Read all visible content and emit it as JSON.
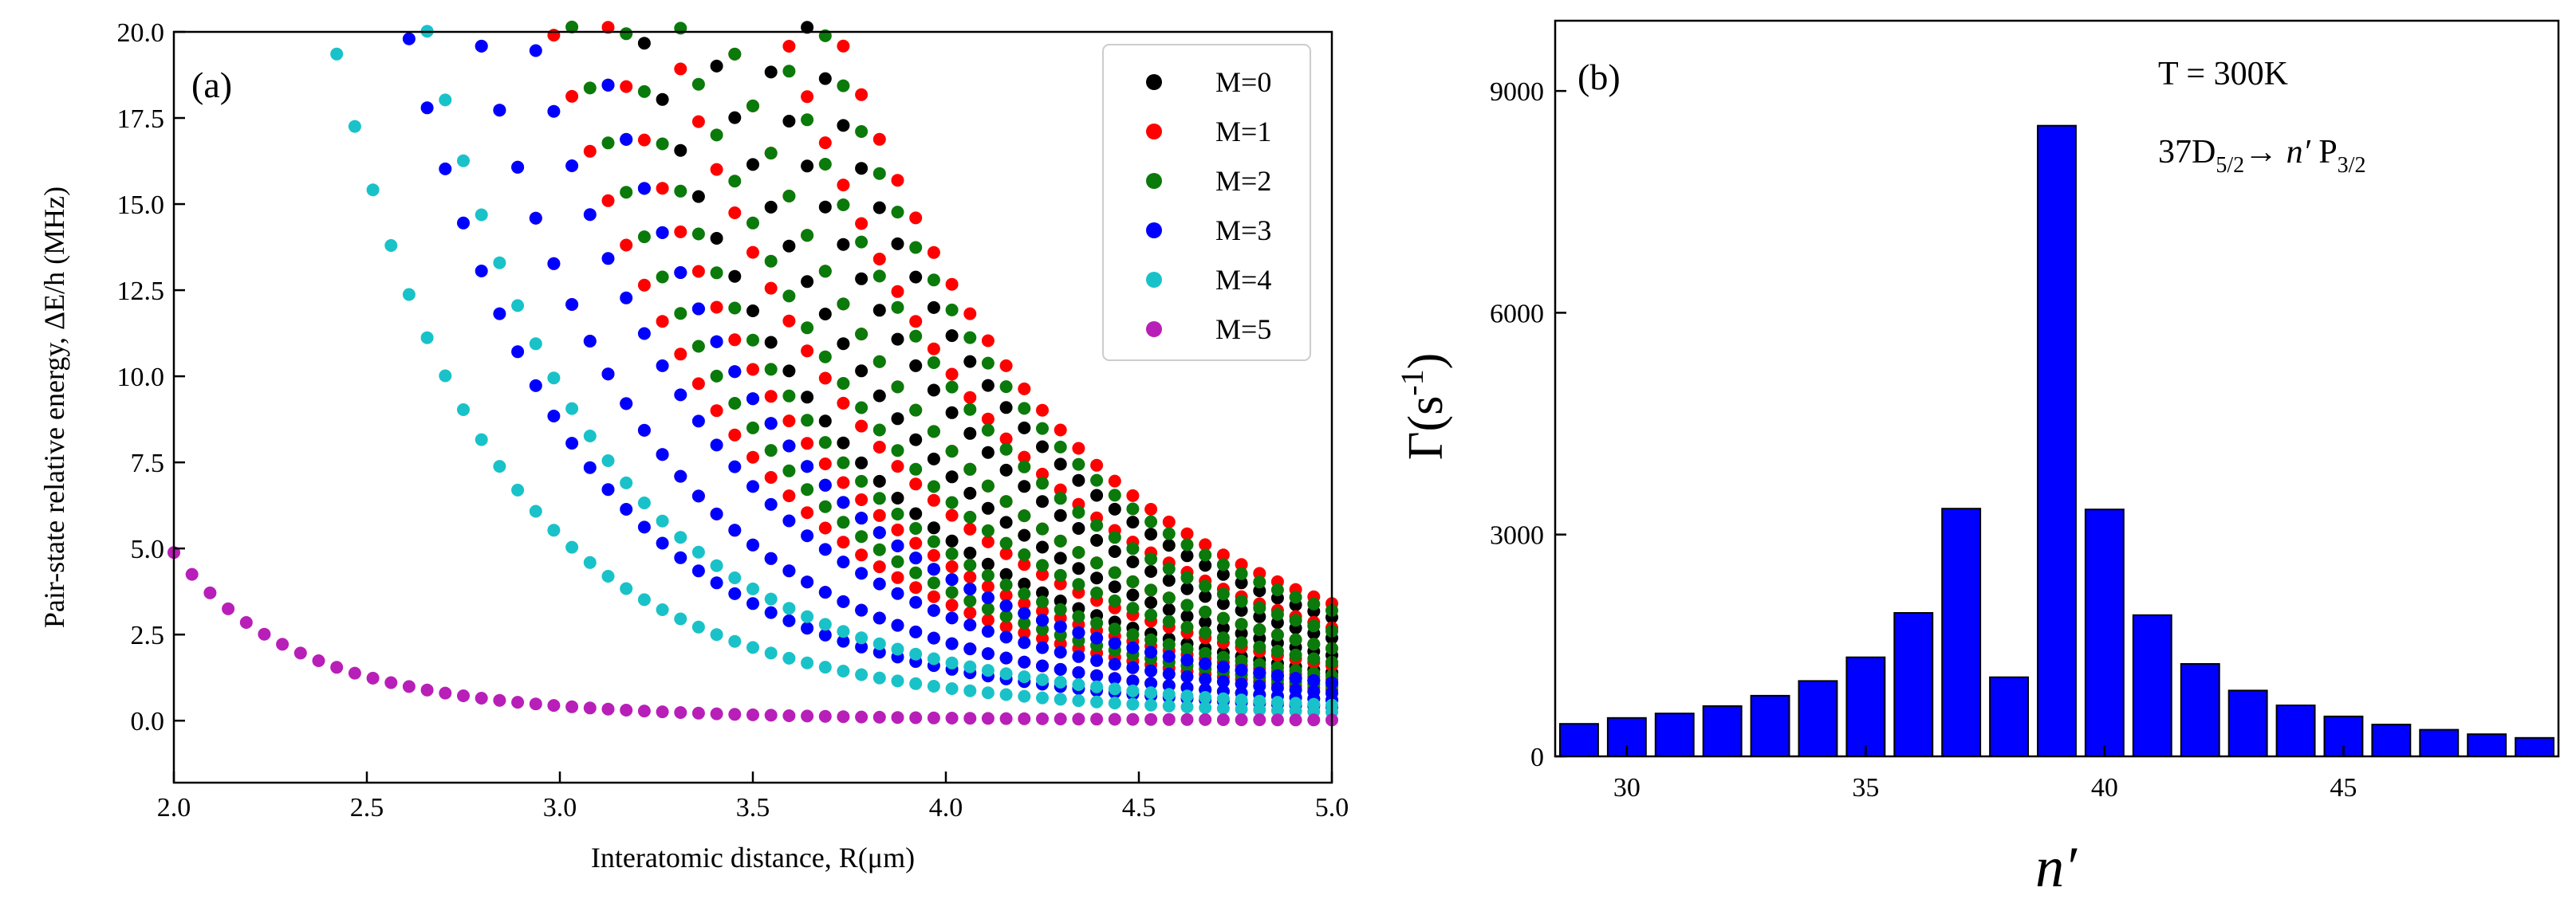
{
  "colors": {
    "M=0": "#000000",
    "M=1": "#ff0000",
    "M=2": "#0a7a0a",
    "M=3": "#0000ff",
    "M=4": "#19c2c8",
    "M=5": "#b81fb8",
    "bar_fill": "#0000ff",
    "bar_edge": "#000000"
  },
  "chart_data": [
    {
      "type": "scatter",
      "panel_label": "(a)",
      "xlabel": "Interatomic distance, R(μm)",
      "ylabel": "Pair-state relative energy, ΔE/h (MHz)",
      "xlim": [
        2.0,
        5.0
      ],
      "ylim": [
        -1.8,
        20.0
      ],
      "x_ticks": [
        "2.0",
        "2.5",
        "3.0",
        "3.5",
        "4.0",
        "4.5",
        "5.0"
      ],
      "y_ticks": [
        "0.0",
        "2.5",
        "5.0",
        "7.5",
        "10.0",
        "12.5",
        "15.0",
        "17.5",
        "20.0"
      ],
      "legend_position": "top-right",
      "x_range_sampled": [
        2.0,
        5.0
      ],
      "series": [
        {
          "name": "M=0",
          "curves_value_at_R5": [
            3.0,
            2.4,
            1.9,
            1.4,
            1.1
          ]
        },
        {
          "name": "M=1",
          "curves_value_at_R5": [
            3.4,
            2.7,
            2.1,
            1.6,
            1.2,
            0.9,
            0.6
          ]
        },
        {
          "name": "M=2",
          "curves_value_at_R5": [
            3.2,
            2.6,
            2.1,
            1.7,
            1.3,
            1.0
          ]
        },
        {
          "name": "M=3",
          "curves_value_at_R5": [
            1.1,
            0.8,
            0.6,
            0.4
          ]
        },
        {
          "name": "M=4",
          "curves_value_at_R5": [
            0.45,
            0.25
          ]
        },
        {
          "name": "M=5",
          "curves_value_at_R5": [
            0.02
          ]
        }
      ]
    },
    {
      "type": "bar",
      "panel_label": "(b)",
      "xlabel": "n′",
      "ylabel": "Γ(s⁻¹)",
      "annotation_temperature": "T = 300K",
      "annotation_transition": "37D5/2→ n′ P3/2",
      "xlim": [
        28.5,
        49.5
      ],
      "ylim": [
        0,
        9950
      ],
      "x_ticks": [
        "30",
        "35",
        "40",
        "45"
      ],
      "y_ticks": [
        "0",
        "3000",
        "6000",
        "9000"
      ],
      "categories": [
        29,
        30,
        31,
        32,
        33,
        34,
        35,
        36,
        37,
        38,
        39,
        40,
        41,
        42,
        43,
        44,
        45,
        46,
        47,
        48,
        49
      ],
      "values": [
        440,
        520,
        580,
        680,
        820,
        1020,
        1340,
        1940,
        3350,
        1070,
        8530,
        3340,
        1910,
        1250,
        890,
        690,
        540,
        430,
        360,
        300,
        250
      ]
    }
  ]
}
